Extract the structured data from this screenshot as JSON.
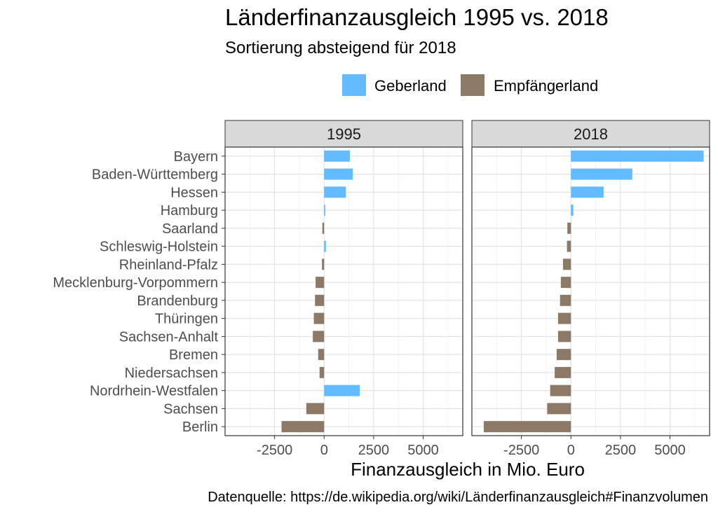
{
  "chart_data": {
    "type": "bar",
    "orientation": "horizontal",
    "title": "Länderfinanzausgleich 1995 vs. 2018",
    "subtitle": "Sortierung absteigend für 2018",
    "xlabel": "Finanzausgleich in Mio. Euro",
    "caption": "Datenquelle: https://de.wikipedia.org/wiki/Länderfinanzausgleich#Finanzvolumen",
    "legend": {
      "position": "top",
      "entries": [
        {
          "label": "Geberland",
          "color": "#64bbff"
        },
        {
          "label": "Empfängerland",
          "color": "#8c7966"
        }
      ]
    },
    "categories": [
      "Bayern",
      "Baden-Württemberg",
      "Hessen",
      "Hamburg",
      "Saarland",
      "Schleswig-Holstein",
      "Rheinland-Pfalz",
      "Mecklenburg-Vorpommern",
      "Brandenburg",
      "Thüringen",
      "Sachsen-Anhalt",
      "Bremen",
      "Niedersachsen",
      "Nordrhein-Westfalen",
      "Sachsen",
      "Berlin"
    ],
    "xlim": [
      -5000,
      7000
    ],
    "xticks": [
      -2500,
      0,
      2500,
      5000
    ],
    "xtick_labels": [
      "-2500",
      "0",
      "2500",
      "5000"
    ],
    "grid": true,
    "facets": [
      {
        "label": "1995",
        "values": [
          1300,
          1450,
          1100,
          60,
          -90,
          90,
          -110,
          -430,
          -460,
          -520,
          -570,
          -300,
          -230,
          1800,
          -900,
          -2150
        ],
        "types": [
          "Geberland",
          "Geberland",
          "Geberland",
          "Geberland",
          "Empfängerland",
          "Geberland",
          "Empfängerland",
          "Empfängerland",
          "Empfängerland",
          "Empfängerland",
          "Empfängerland",
          "Empfängerland",
          "Empfängerland",
          "Geberland",
          "Empfängerland",
          "Empfängerland"
        ]
      },
      {
        "label": "2018",
        "values": [
          6700,
          3100,
          1650,
          120,
          -180,
          -200,
          -400,
          -510,
          -550,
          -650,
          -650,
          -720,
          -820,
          -1050,
          -1200,
          -4400
        ],
        "types": [
          "Geberland",
          "Geberland",
          "Geberland",
          "Geberland",
          "Empfängerland",
          "Empfängerland",
          "Empfängerland",
          "Empfängerland",
          "Empfängerland",
          "Empfängerland",
          "Empfängerland",
          "Empfängerland",
          "Empfängerland",
          "Empfängerland",
          "Empfängerland",
          "Empfängerland"
        ]
      }
    ]
  }
}
